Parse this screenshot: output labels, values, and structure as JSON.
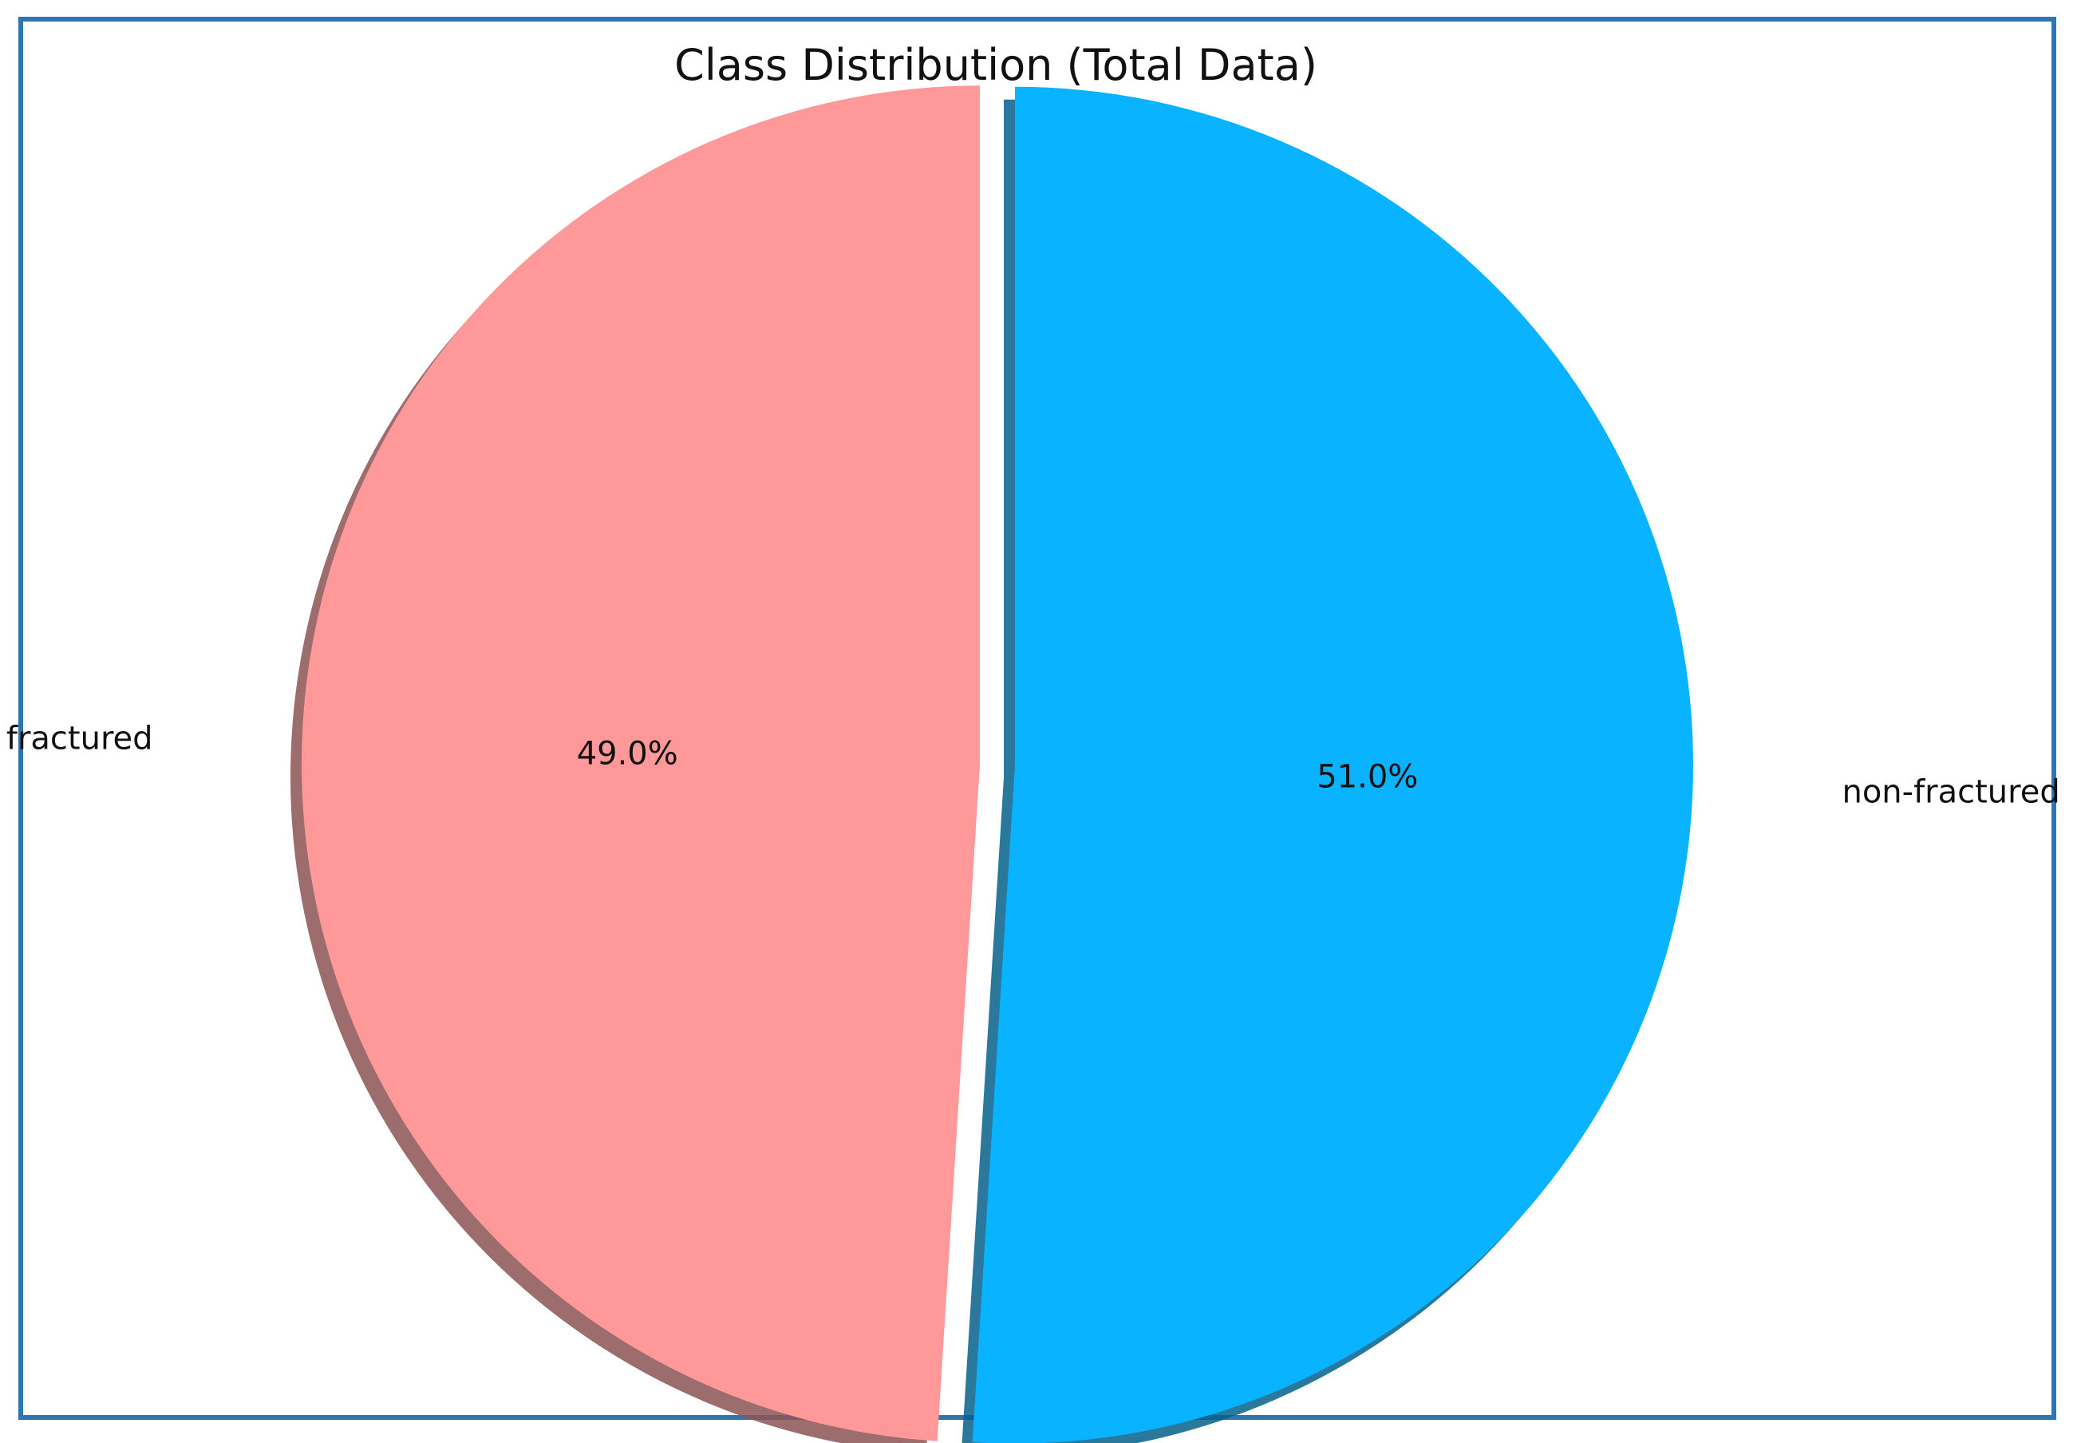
{
  "chart_data": {
    "type": "pie",
    "title": "Class Distribution (Total Data)",
    "slices": [
      {
        "label": "fractured",
        "value": 49.0,
        "pct_label": "49.0%",
        "color": "#ff9999"
      },
      {
        "label": "non-fractured",
        "value": 51.0,
        "pct_label": "51.0%",
        "color": "#09b3ff"
      }
    ],
    "shadow": true,
    "exploded": true,
    "start_angle_deg": 90,
    "direction": "counterclockwise",
    "frame_color": "#2e75b6"
  }
}
